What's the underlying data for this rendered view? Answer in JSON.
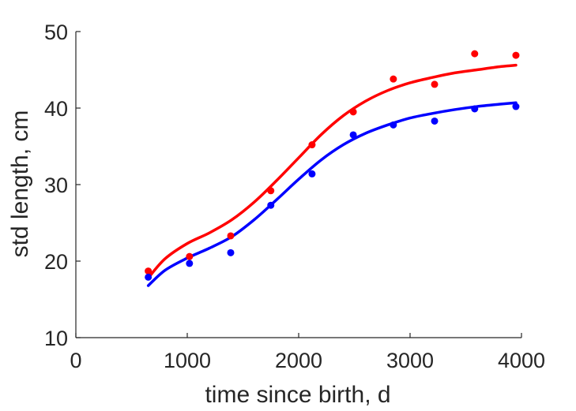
{
  "chart_data": {
    "type": "scatter",
    "xlabel": "time since birth, d",
    "ylabel": "std length, cm",
    "xlim": [
      0,
      4000
    ],
    "ylim": [
      10,
      50
    ],
    "xticks": [
      0,
      1000,
      2000,
      3000,
      4000
    ],
    "yticks": [
      10,
      20,
      30,
      40,
      50
    ],
    "grid": false,
    "colors": {
      "red": "#ff0000",
      "blue": "#0000ff",
      "axis": "#262626"
    },
    "series": [
      {
        "color": "#ff0000",
        "kind": "points",
        "x": [
          650,
          1020,
          1390,
          1750,
          2120,
          2490,
          2850,
          3220,
          3580,
          3950
        ],
        "y": [
          18.7,
          20.6,
          23.3,
          29.2,
          35.2,
          39.5,
          43.8,
          43.1,
          47.1,
          46.9
        ]
      },
      {
        "color": "#0000ff",
        "kind": "points",
        "x": [
          650,
          1020,
          1390,
          1750,
          2120,
          2490,
          2850,
          3220,
          3580,
          3950
        ],
        "y": [
          17.9,
          19.7,
          21.1,
          27.3,
          31.4,
          36.5,
          37.8,
          38.3,
          39.9,
          40.2
        ]
      },
      {
        "color": "#ff0000",
        "kind": "line",
        "x": [
          650,
          800,
          1000,
          1200,
          1400,
          1600,
          1800,
          2000,
          2200,
          2400,
          2600,
          2800,
          3000,
          3200,
          3400,
          3600,
          3800,
          3950
        ],
        "y": [
          17.8,
          20.3,
          22.3,
          23.7,
          25.4,
          27.7,
          30.5,
          33.5,
          36.5,
          39.0,
          40.9,
          42.3,
          43.3,
          44.0,
          44.6,
          45.0,
          45.4,
          45.6
        ]
      },
      {
        "color": "#0000ff",
        "kind": "line",
        "x": [
          650,
          800,
          1000,
          1200,
          1400,
          1600,
          1800,
          2000,
          2200,
          2400,
          2600,
          2800,
          3000,
          3200,
          3400,
          3600,
          3800,
          3950
        ],
        "y": [
          16.8,
          18.8,
          20.4,
          21.7,
          23.2,
          25.4,
          28.0,
          30.7,
          33.2,
          35.2,
          36.7,
          37.8,
          38.7,
          39.3,
          39.8,
          40.2,
          40.5,
          40.7
        ]
      }
    ]
  }
}
